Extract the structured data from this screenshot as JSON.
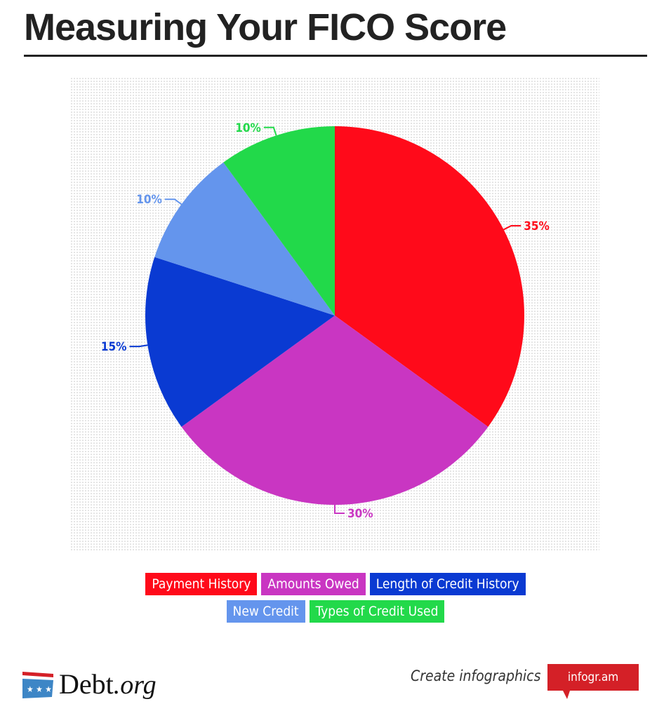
{
  "title": "Measuring Your FICO Score",
  "chart_data": {
    "type": "pie",
    "title": "",
    "start": "top",
    "direction": "clockwise",
    "legend_position": "bottom",
    "slices": [
      {
        "name": "Payment History",
        "value": 35,
        "label": "35%",
        "color": "#ff0a1a"
      },
      {
        "name": "Amounts Owed",
        "value": 30,
        "label": "30%",
        "color": "#c936c2"
      },
      {
        "name": "Length of Credit History",
        "value": 15,
        "label": "15%",
        "color": "#0a3ad2"
      },
      {
        "name": "New Credit",
        "value": 10,
        "label": "10%",
        "color": "#6495ed"
      },
      {
        "name": "Types of Credit Used",
        "value": 10,
        "label": "10%",
        "color": "#22d94a"
      }
    ]
  },
  "footer": {
    "brand": "Debt",
    "brand_suffix": ".org",
    "create_text": "Create infographics",
    "infogram_label": "infogr.am"
  }
}
